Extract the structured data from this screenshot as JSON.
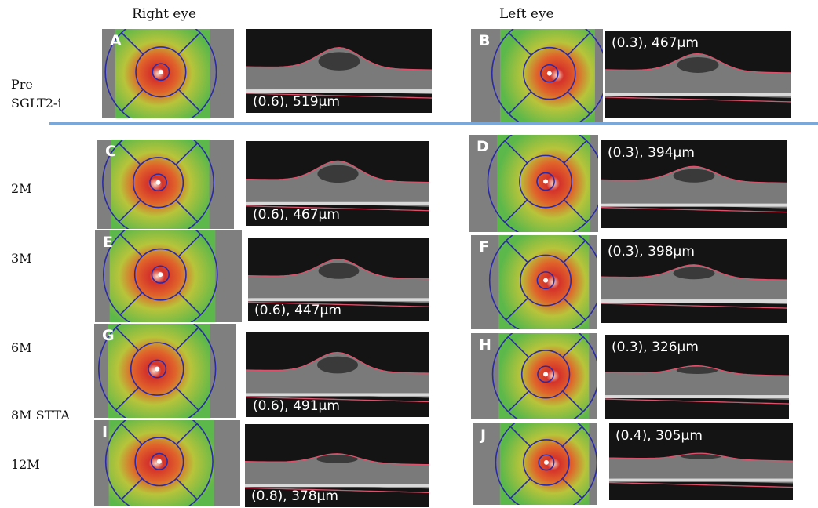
{
  "columns": {
    "right": "Right eye",
    "left": "Left eye"
  },
  "rows": [
    {
      "label": "Pre\nSGLT2-i"
    },
    {
      "label": "2M"
    },
    {
      "label": "3M"
    },
    {
      "label": "6M"
    },
    {
      "label": "8M STTA"
    },
    {
      "label": "12M"
    }
  ],
  "panels": {
    "A": {
      "letter": "A"
    },
    "B": {
      "letter": "B"
    },
    "C": {
      "letter": "C"
    },
    "D": {
      "letter": "D"
    },
    "E": {
      "letter": "E"
    },
    "F": {
      "letter": "F"
    },
    "G": {
      "letter": "G"
    },
    "H": {
      "letter": "H"
    },
    "I": {
      "letter": "I"
    },
    "J": {
      "letter": "J"
    }
  },
  "scans": {
    "A": "(0.6), 519μm",
    "B": "(0.3), 467μm",
    "C": "(0.6), 467μm",
    "D": "(0.3), 394μm",
    "E": "(0.6), 447μm",
    "F": "(0.3), 398μm",
    "G": "(0.6), 491μm",
    "H": "(0.3), 326μm",
    "I": "(0.8), 378μm",
    "J": "(0.4), 305μm"
  }
}
